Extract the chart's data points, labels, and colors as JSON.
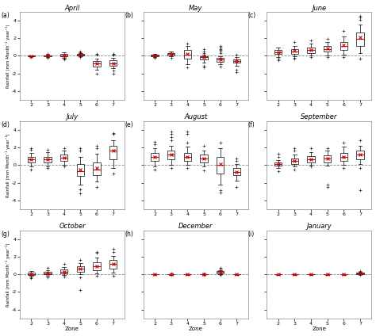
{
  "months": [
    "April",
    "May",
    "June",
    "July",
    "August",
    "September",
    "October",
    "December",
    "January"
  ],
  "labels": [
    "(a)",
    "(b)",
    "(c)",
    "(d)",
    "(e)",
    "(f)",
    "(g)",
    "(h)",
    "(i)"
  ],
  "zones": [
    2,
    3,
    4,
    5,
    6,
    7
  ],
  "ylim": [
    -5,
    5
  ],
  "yticks": [
    -4,
    -2,
    0,
    2,
    4
  ],
  "ylabel": "Rainfall (mm Month⁻¹ year⁻¹)",
  "xlabel": "Zone",
  "background_color": "#f0f0f0",
  "panel_order": [
    [
      "April",
      "May",
      "June"
    ],
    [
      "July",
      "August",
      "September"
    ],
    [
      "October",
      "December",
      "January"
    ]
  ],
  "panel_data": {
    "April": {
      "boxes": [
        {
          "zone": 2,
          "q1": -0.05,
          "median": 0.0,
          "q3": 0.03,
          "whislo": -0.08,
          "whishi": 0.06,
          "mean": -0.03,
          "fliers": [
            -0.15
          ]
        },
        {
          "zone": 3,
          "q1": -0.06,
          "median": 0.0,
          "q3": 0.06,
          "whislo": -0.12,
          "whishi": 0.12,
          "mean": 0.0,
          "fliers": [
            -0.2,
            0.2
          ]
        },
        {
          "zone": 4,
          "q1": -0.1,
          "median": 0.05,
          "q3": 0.2,
          "whislo": -0.22,
          "whishi": 0.38,
          "mean": 0.06,
          "fliers": [
            -0.35,
            -0.45
          ]
        },
        {
          "zone": 5,
          "q1": 0.05,
          "median": 0.12,
          "q3": 0.2,
          "whislo": -0.06,
          "whishi": 0.28,
          "mean": 0.12,
          "fliers": [
            0.42,
            0.5,
            -0.12
          ]
        },
        {
          "zone": 6,
          "q1": -1.2,
          "median": -0.9,
          "q3": -0.6,
          "whislo": -1.6,
          "whishi": -0.3,
          "mean": -0.9,
          "fliers": [
            -2.0,
            0.15,
            0.2
          ]
        },
        {
          "zone": 7,
          "q1": -1.1,
          "median": -0.85,
          "q3": -0.55,
          "whislo": -1.4,
          "whishi": -0.25,
          "mean": -0.85,
          "fliers": [
            -1.7,
            -2.0,
            0.08,
            0.15,
            0.22
          ]
        }
      ]
    },
    "May": {
      "boxes": [
        {
          "zone": 2,
          "q1": -0.05,
          "median": 0.06,
          "q3": 0.13,
          "whislo": -0.12,
          "whishi": 0.2,
          "mean": 0.06,
          "fliers": [
            -0.25
          ]
        },
        {
          "zone": 3,
          "q1": 0.06,
          "median": 0.18,
          "q3": 0.32,
          "whislo": -0.06,
          "whishi": 0.45,
          "mean": 0.18,
          "fliers": [
            -0.2
          ]
        },
        {
          "zone": 4,
          "q1": -0.3,
          "median": 0.12,
          "q3": 0.65,
          "whislo": -0.95,
          "whishi": 1.15,
          "mean": 0.18,
          "fliers": [
            -1.3,
            1.4
          ]
        },
        {
          "zone": 5,
          "q1": -0.38,
          "median": -0.18,
          "q3": -0.06,
          "whislo": -0.75,
          "whishi": 0.12,
          "mean": -0.18,
          "fliers": [
            -1.1,
            -1.35,
            0.32,
            0.5,
            0.75
          ]
        },
        {
          "zone": 6,
          "q1": -0.65,
          "median": -0.45,
          "q3": -0.25,
          "whislo": -0.95,
          "whishi": -0.06,
          "mean": -0.45,
          "fliers": [
            -1.25,
            0.32,
            0.5,
            0.65,
            0.75,
            0.95,
            1.15
          ]
        },
        {
          "zone": 7,
          "q1": -0.82,
          "median": -0.62,
          "q3": -0.45,
          "whislo": -1.15,
          "whishi": -0.18,
          "mean": -0.62,
          "fliers": [
            -1.6,
            -1.9,
            0.12
          ]
        }
      ]
    },
    "June": {
      "boxes": [
        {
          "zone": 2,
          "q1": 0.2,
          "median": 0.38,
          "q3": 0.65,
          "whislo": -0.12,
          "whishi": 0.95,
          "mean": 0.42,
          "fliers": [
            -0.32,
            -0.5
          ]
        },
        {
          "zone": 3,
          "q1": 0.25,
          "median": 0.5,
          "q3": 0.75,
          "whislo": -0.06,
          "whishi": 1.15,
          "mean": 0.55,
          "fliers": [
            -0.2,
            -0.32,
            1.6
          ]
        },
        {
          "zone": 4,
          "q1": 0.32,
          "median": 0.62,
          "q3": 0.95,
          "whislo": 0.0,
          "whishi": 1.4,
          "mean": 0.68,
          "fliers": [
            -0.18,
            1.75
          ]
        },
        {
          "zone": 5,
          "q1": 0.45,
          "median": 0.75,
          "q3": 1.15,
          "whislo": 0.06,
          "whishi": 1.6,
          "mean": 0.82,
          "fliers": [
            -0.12,
            1.9
          ]
        },
        {
          "zone": 6,
          "q1": 0.62,
          "median": 1.15,
          "q3": 1.6,
          "whislo": 0.12,
          "whishi": 2.2,
          "mean": 1.2,
          "fliers": [
            -0.18,
            2.8
          ]
        },
        {
          "zone": 7,
          "q1": 1.15,
          "median": 1.9,
          "q3": 2.65,
          "whislo": 0.32,
          "whishi": 3.5,
          "mean": 2.05,
          "fliers": [
            -0.32,
            4.1,
            4.3,
            4.5
          ]
        }
      ]
    },
    "July": {
      "boxes": [
        {
          "zone": 2,
          "q1": 0.32,
          "median": 0.65,
          "q3": 0.95,
          "whislo": -0.18,
          "whishi": 1.4,
          "mean": 0.65,
          "fliers": [
            -0.5,
            1.75,
            1.9
          ]
        },
        {
          "zone": 3,
          "q1": 0.32,
          "median": 0.65,
          "q3": 0.95,
          "whislo": -0.12,
          "whishi": 1.45,
          "mean": 0.65,
          "fliers": [
            -0.32,
            1.75
          ]
        },
        {
          "zone": 4,
          "q1": 0.5,
          "median": 0.82,
          "q3": 1.15,
          "whislo": 0.0,
          "whishi": 1.6,
          "mean": 0.82,
          "fliers": [
            -0.18,
            1.9
          ]
        },
        {
          "zone": 5,
          "q1": -1.25,
          "median": -0.65,
          "q3": 0.12,
          "whislo": -2.2,
          "whishi": 0.95,
          "mean": -0.5,
          "fliers": [
            -3.2,
            -2.8,
            1.6,
            1.9
          ]
        },
        {
          "zone": 6,
          "q1": -1.15,
          "median": -0.5,
          "q3": 0.32,
          "whislo": -1.9,
          "whishi": 1.25,
          "mean": -0.32,
          "fliers": [
            -2.5,
            1.9,
            2.2
          ]
        },
        {
          "zone": 7,
          "q1": 0.65,
          "median": 1.6,
          "q3": 2.2,
          "whislo": -0.32,
          "whishi": 2.85,
          "mean": 1.6,
          "fliers": [
            -0.95,
            3.5,
            3.65
          ]
        }
      ]
    },
    "August": {
      "boxes": [
        {
          "zone": 2,
          "q1": 0.5,
          "median": 0.95,
          "q3": 1.4,
          "whislo": -0.12,
          "whishi": 1.9,
          "mean": 0.95,
          "fliers": [
            -0.5,
            2.4,
            2.65
          ]
        },
        {
          "zone": 3,
          "q1": 0.65,
          "median": 1.15,
          "q3": 1.6,
          "whislo": 0.0,
          "whishi": 2.2,
          "mean": 1.15,
          "fliers": [
            -0.32,
            2.85,
            3.15,
            3.5,
            3.8
          ]
        },
        {
          "zone": 4,
          "q1": 0.5,
          "median": 0.95,
          "q3": 1.4,
          "whislo": 0.0,
          "whishi": 2.05,
          "mean": 0.95,
          "fliers": [
            -0.32,
            2.5,
            3.5,
            3.8
          ]
        },
        {
          "zone": 5,
          "q1": 0.32,
          "median": 0.75,
          "q3": 1.15,
          "whislo": -0.18,
          "whishi": 1.6,
          "mean": 0.75,
          "fliers": [
            -0.62,
            2.2
          ]
        },
        {
          "zone": 6,
          "q1": -0.95,
          "median": 0.0,
          "q3": 0.95,
          "whislo": -2.2,
          "whishi": 1.9,
          "mean": 0.12,
          "fliers": [
            -3.15,
            -2.85,
            2.5
          ]
        },
        {
          "zone": 7,
          "q1": -1.15,
          "median": -0.75,
          "q3": -0.32,
          "whislo": -1.75,
          "whishi": 0.12,
          "mean": -0.75,
          "fliers": [
            -2.5,
            0.5,
            0.75
          ]
        }
      ]
    },
    "September": {
      "boxes": [
        {
          "zone": 2,
          "q1": -0.06,
          "median": 0.12,
          "q3": 0.32,
          "whislo": -0.32,
          "whishi": 0.58,
          "mean": 0.12,
          "fliers": [
            -0.65,
            0.95,
            1.25
          ]
        },
        {
          "zone": 3,
          "q1": 0.12,
          "median": 0.45,
          "q3": 0.75,
          "whislo": -0.18,
          "whishi": 1.15,
          "mean": 0.45,
          "fliers": [
            -0.5,
            1.6,
            1.9
          ]
        },
        {
          "zone": 4,
          "q1": 0.32,
          "median": 0.65,
          "q3": 1.0,
          "whislo": 0.0,
          "whishi": 1.45,
          "mean": 0.65,
          "fliers": [
            -0.18,
            1.9
          ]
        },
        {
          "zone": 5,
          "q1": 0.32,
          "median": 0.7,
          "q3": 1.08,
          "whislo": -0.06,
          "whishi": 1.6,
          "mean": 0.7,
          "fliers": [
            -2.2,
            -2.5,
            1.9
          ]
        },
        {
          "zone": 6,
          "q1": 0.5,
          "median": 0.95,
          "q3": 1.4,
          "whislo": 0.0,
          "whishi": 2.05,
          "mean": 0.95,
          "fliers": [
            -0.32,
            2.5
          ]
        },
        {
          "zone": 7,
          "q1": 0.65,
          "median": 1.15,
          "q3": 1.6,
          "whislo": 0.12,
          "whishi": 2.2,
          "mean": 1.15,
          "fliers": [
            -0.32,
            2.85,
            -2.85
          ]
        }
      ]
    },
    "October": {
      "boxes": [
        {
          "zone": 2,
          "q1": -0.06,
          "median": 0.06,
          "q3": 0.18,
          "whislo": -0.18,
          "whishi": 0.38,
          "mean": 0.06,
          "fliers": [
            -0.32,
            -0.45
          ]
        },
        {
          "zone": 3,
          "q1": 0.0,
          "median": 0.12,
          "q3": 0.32,
          "whislo": -0.12,
          "whishi": 0.5,
          "mean": 0.12,
          "fliers": [
            -0.32,
            0.75
          ]
        },
        {
          "zone": 4,
          "q1": 0.12,
          "median": 0.32,
          "q3": 0.58,
          "whislo": -0.06,
          "whishi": 0.82,
          "mean": 0.32,
          "fliers": [
            -0.25,
            1.15
          ]
        },
        {
          "zone": 5,
          "q1": 0.32,
          "median": 0.65,
          "q3": 0.95,
          "whislo": 0.0,
          "whishi": 1.25,
          "mean": 0.65,
          "fliers": [
            -0.32,
            1.6,
            -1.75
          ]
        },
        {
          "zone": 6,
          "q1": 0.5,
          "median": 0.95,
          "q3": 1.4,
          "whislo": 0.12,
          "whishi": 1.9,
          "mean": 0.95,
          "fliers": [
            -0.18,
            2.4,
            2.5
          ]
        },
        {
          "zone": 7,
          "q1": 0.65,
          "median": 1.15,
          "q3": 1.6,
          "whislo": 0.18,
          "whishi": 2.05,
          "mean": 1.15,
          "fliers": [
            -0.12,
            2.5,
            2.85
          ]
        }
      ]
    },
    "December": {
      "boxes": [
        {
          "zone": 2,
          "q1": -0.02,
          "median": 0.0,
          "q3": 0.02,
          "whislo": -0.04,
          "whishi": 0.04,
          "mean": 0.0,
          "fliers": []
        },
        {
          "zone": 3,
          "q1": -0.02,
          "median": 0.0,
          "q3": 0.02,
          "whislo": -0.04,
          "whishi": 0.04,
          "mean": 0.0,
          "fliers": [
            -0.08,
            0.12
          ]
        },
        {
          "zone": 4,
          "q1": -0.02,
          "median": 0.0,
          "q3": 0.02,
          "whislo": -0.04,
          "whishi": 0.04,
          "mean": 0.0,
          "fliers": []
        },
        {
          "zone": 5,
          "q1": -0.02,
          "median": 0.0,
          "q3": 0.02,
          "whislo": -0.04,
          "whishi": 0.04,
          "mean": 0.0,
          "fliers": [
            -0.08,
            0.12
          ]
        },
        {
          "zone": 6,
          "q1": 0.12,
          "median": 0.25,
          "q3": 0.38,
          "whislo": 0.0,
          "whishi": 0.5,
          "mean": 0.25,
          "fliers": [
            -0.08,
            0.62,
            0.75
          ]
        },
        {
          "zone": 7,
          "q1": -0.02,
          "median": 0.0,
          "q3": 0.02,
          "whislo": -0.04,
          "whishi": 0.04,
          "mean": 0.0,
          "fliers": []
        }
      ]
    },
    "January": {
      "boxes": [
        {
          "zone": 2,
          "q1": -0.02,
          "median": 0.0,
          "q3": 0.02,
          "whislo": -0.04,
          "whishi": 0.04,
          "mean": 0.0,
          "fliers": []
        },
        {
          "zone": 3,
          "q1": -0.02,
          "median": 0.0,
          "q3": 0.02,
          "whislo": -0.04,
          "whishi": 0.04,
          "mean": 0.0,
          "fliers": []
        },
        {
          "zone": 4,
          "q1": -0.02,
          "median": 0.0,
          "q3": 0.02,
          "whislo": -0.04,
          "whishi": 0.04,
          "mean": 0.0,
          "fliers": []
        },
        {
          "zone": 5,
          "q1": -0.02,
          "median": 0.0,
          "q3": 0.02,
          "whislo": -0.04,
          "whishi": 0.04,
          "mean": 0.0,
          "fliers": []
        },
        {
          "zone": 6,
          "q1": -0.02,
          "median": 0.0,
          "q3": 0.02,
          "whislo": -0.04,
          "whishi": 0.04,
          "mean": 0.0,
          "fliers": []
        },
        {
          "zone": 7,
          "q1": 0.04,
          "median": 0.12,
          "q3": 0.2,
          "whislo": 0.0,
          "whishi": 0.28,
          "mean": 0.12,
          "fliers": [
            -0.04,
            0.38
          ]
        }
      ]
    }
  }
}
